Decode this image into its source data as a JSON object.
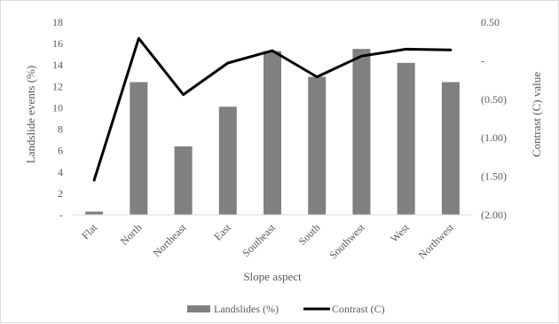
{
  "chart_data": {
    "type": "bar+line",
    "title": "",
    "categories": [
      "Flat",
      "North",
      "Northeast",
      "East",
      "Southeast",
      "South",
      "Southwest",
      "West",
      "Northwest"
    ],
    "series": [
      {
        "name": "Landslides (%)",
        "type": "bar",
        "axis": "left",
        "color": "#808080",
        "values": [
          0.3,
          12.4,
          6.4,
          10.1,
          15.3,
          12.9,
          15.5,
          14.2,
          12.4
        ]
      },
      {
        "name": "Contrast (C)",
        "type": "line",
        "axis": "right",
        "color": "#000000",
        "values": [
          -1.55,
          0.29,
          -0.44,
          -0.03,
          0.13,
          -0.21,
          0.06,
          0.15,
          0.14
        ]
      }
    ],
    "xlabel": "Slope aspect",
    "ylabel_left": "Landslide events (%)",
    "ylabel_right": "Contrast (C) value",
    "ylim_left": [
      0,
      18
    ],
    "ylim_right": [
      -2.0,
      0.5
    ],
    "yticks_left": [
      "-",
      "2",
      "4",
      "6",
      "8",
      "10",
      "12",
      "14",
      "16",
      "18"
    ],
    "yticks_right": [
      "(2.00)",
      "(1.50)",
      "(1.00)",
      "(0.50)",
      "-",
      "0.50"
    ],
    "grid": false,
    "legend_position": "bottom"
  }
}
